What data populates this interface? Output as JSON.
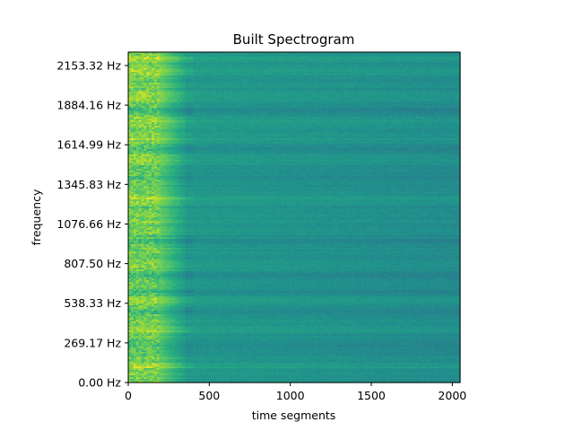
{
  "chart_data": {
    "type": "heatmap",
    "title": "Built Spectrogram",
    "xlabel": "time segments",
    "ylabel": "frequency",
    "xlim": [
      0,
      2048
    ],
    "ylim": [
      0,
      2244.5
    ],
    "x_ticks": [
      {
        "value": 0,
        "label": "0"
      },
      {
        "value": 500,
        "label": "500"
      },
      {
        "value": 1000,
        "label": "1000"
      },
      {
        "value": 1500,
        "label": "1500"
      },
      {
        "value": 2000,
        "label": "2000"
      }
    ],
    "y_ticks": [
      {
        "value": 0.0,
        "label": "0.00 Hz"
      },
      {
        "value": 269.17,
        "label": "269.17 Hz"
      },
      {
        "value": 538.33,
        "label": "538.33 Hz"
      },
      {
        "value": 807.5,
        "label": "807.50 Hz"
      },
      {
        "value": 1076.66,
        "label": "1076.66 Hz"
      },
      {
        "value": 1345.83,
        "label": "1345.83 Hz"
      },
      {
        "value": 1614.99,
        "label": "1614.99 Hz"
      },
      {
        "value": 1884.16,
        "label": "1884.16 Hz"
      },
      {
        "value": 2153.32,
        "label": "2153.32 Hz"
      }
    ],
    "colormap": "viridis",
    "intensity_profile": {
      "time_bands": [
        {
          "x_range": [
            0,
            180
          ],
          "level": "high"
        },
        {
          "x_range": [
            180,
            350
          ],
          "level": "medium"
        },
        {
          "x_range": [
            350,
            2048
          ],
          "level": "low"
        }
      ],
      "bright_frequencies_hz": [
        110,
        360,
        560,
        1245,
        1510,
        1650,
        1770,
        1950,
        2110,
        2200
      ],
      "dark_frequencies_hz": [
        230,
        470,
        620,
        720,
        960,
        1390,
        1590,
        1850
      ]
    },
    "colors": {
      "high": "#c7e020",
      "medium": "#4ac16d",
      "low": "#21918c",
      "dark": "#2c728e"
    },
    "grid": false
  }
}
